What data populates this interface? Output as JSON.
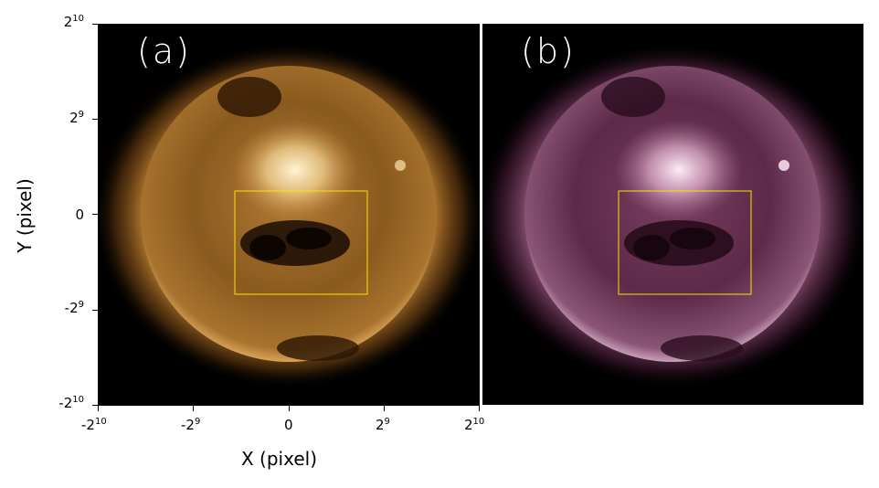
{
  "panels": [
    {
      "label": "(a)",
      "colors": {
        "limb": "#3a1d05",
        "disk": "#6e4512",
        "core": "#fff4d6",
        "glow": "#c98a3c"
      }
    },
    {
      "label": "(b)",
      "colors": {
        "limb": "#2a0c1e",
        "disk": "#5c2a48",
        "core": "#ffeef6",
        "glow": "#a06a8a"
      }
    }
  ],
  "region_box_color": "#ffe000",
  "x_axis": {
    "title": "X (pixel)",
    "ticks": [
      {
        "base": "-2",
        "exp": "10"
      },
      {
        "base": "-2",
        "exp": "9"
      },
      {
        "base": "0",
        "exp": ""
      },
      {
        "base": "2",
        "exp": "9"
      },
      {
        "base": "2",
        "exp": "10"
      }
    ]
  },
  "y_axis": {
    "title": "Y (pixel)",
    "ticks": [
      {
        "base": "2",
        "exp": "10"
      },
      {
        "base": "2",
        "exp": "9"
      },
      {
        "base": "0",
        "exp": ""
      },
      {
        "base": "-2",
        "exp": "9"
      },
      {
        "base": "-2",
        "exp": "10"
      }
    ]
  }
}
